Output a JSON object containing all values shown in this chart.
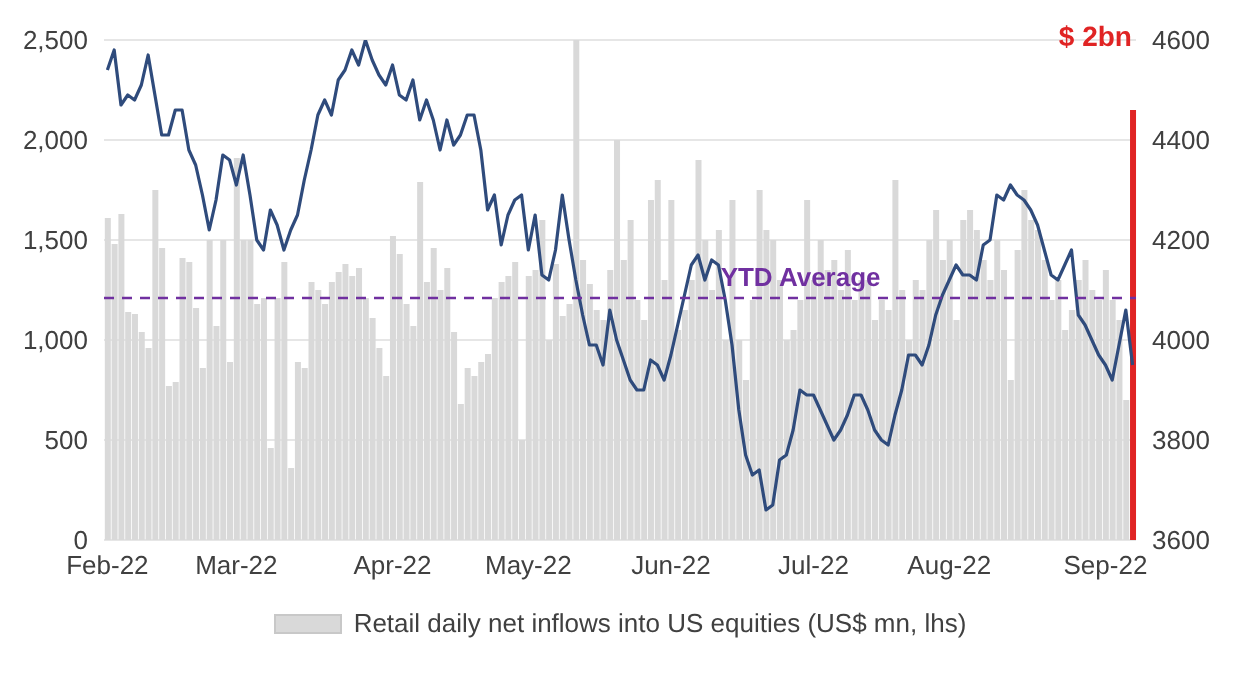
{
  "chart_data": {
    "type": "bar",
    "categories": [
      "Feb-22",
      null,
      null,
      null,
      null,
      null,
      null,
      null,
      null,
      null,
      null,
      null,
      null,
      null,
      null,
      null,
      null,
      null,
      null,
      "Mar-22",
      null,
      null,
      null,
      null,
      null,
      null,
      null,
      null,
      null,
      null,
      null,
      null,
      null,
      null,
      null,
      null,
      null,
      null,
      null,
      null,
      null,
      null,
      "Apr-22",
      null,
      null,
      null,
      null,
      null,
      null,
      null,
      null,
      null,
      null,
      null,
      null,
      null,
      null,
      null,
      null,
      null,
      null,
      null,
      "May-22",
      null,
      null,
      null,
      null,
      null,
      null,
      null,
      null,
      null,
      null,
      null,
      null,
      null,
      null,
      null,
      null,
      null,
      null,
      null,
      null,
      "Jun-22",
      null,
      null,
      null,
      null,
      null,
      null,
      null,
      null,
      null,
      null,
      null,
      null,
      null,
      null,
      null,
      null,
      null,
      null,
      null,
      null,
      "Jul-22",
      null,
      null,
      null,
      null,
      null,
      null,
      null,
      null,
      null,
      null,
      null,
      null,
      null,
      null,
      null,
      null,
      null,
      null,
      null,
      "Aug-22",
      null,
      null,
      null,
      null,
      null,
      null,
      null,
      null,
      null,
      null,
      null,
      null,
      null,
      null,
      null,
      null,
      null,
      null,
      null,
      null,
      null,
      null,
      "Sep-22",
      null,
      null,
      null,
      null
    ],
    "series": [
      {
        "name": "Retail daily net inflows into US equities (US$ mn, lhs)",
        "color": "#d9d9d9",
        "colors": [
          "#d9d9d9",
          "#d9d9d9",
          "#d9d9d9",
          "#d9d9d9",
          "#d9d9d9",
          "#d9d9d9",
          "#d9d9d9",
          "#d9d9d9",
          "#d9d9d9",
          "#d9d9d9",
          "#d9d9d9",
          "#d9d9d9",
          "#d9d9d9",
          "#d9d9d9",
          "#d9d9d9",
          "#d9d9d9",
          "#d9d9d9",
          "#d9d9d9",
          "#d9d9d9",
          "#d9d9d9",
          "#d9d9d9",
          "#d9d9d9",
          "#d9d9d9",
          "#d9d9d9",
          "#d9d9d9",
          "#d9d9d9",
          "#d9d9d9",
          "#d9d9d9",
          "#d9d9d9",
          "#d9d9d9",
          "#d9d9d9",
          "#d9d9d9",
          "#d9d9d9",
          "#d9d9d9",
          "#d9d9d9",
          "#d9d9d9",
          "#d9d9d9",
          "#d9d9d9",
          "#d9d9d9",
          "#d9d9d9",
          "#d9d9d9",
          "#d9d9d9",
          "#d9d9d9",
          "#d9d9d9",
          "#d9d9d9",
          "#d9d9d9",
          "#d9d9d9",
          "#d9d9d9",
          "#d9d9d9",
          "#d9d9d9",
          "#d9d9d9",
          "#d9d9d9",
          "#d9d9d9",
          "#d9d9d9",
          "#d9d9d9",
          "#d9d9d9",
          "#d9d9d9",
          "#d9d9d9",
          "#d9d9d9",
          "#d9d9d9",
          "#d9d9d9",
          "#d9d9d9",
          "#d9d9d9",
          "#d9d9d9",
          "#d9d9d9",
          "#d9d9d9",
          "#d9d9d9",
          "#d9d9d9",
          "#d9d9d9",
          "#d9d9d9",
          "#d9d9d9",
          "#d9d9d9",
          "#d9d9d9",
          "#d9d9d9",
          "#d9d9d9",
          "#d9d9d9",
          "#d9d9d9",
          "#d9d9d9",
          "#d9d9d9",
          "#d9d9d9",
          "#d9d9d9",
          "#d9d9d9",
          "#d9d9d9",
          "#d9d9d9",
          "#d9d9d9",
          "#d9d9d9",
          "#d9d9d9",
          "#d9d9d9",
          "#d9d9d9",
          "#d9d9d9",
          "#d9d9d9",
          "#d9d9d9",
          "#d9d9d9",
          "#d9d9d9",
          "#d9d9d9",
          "#d9d9d9",
          "#d9d9d9",
          "#d9d9d9",
          "#d9d9d9",
          "#d9d9d9",
          "#d9d9d9",
          "#d9d9d9",
          "#d9d9d9",
          "#d9d9d9",
          "#d9d9d9",
          "#d9d9d9",
          "#d9d9d9",
          "#d9d9d9",
          "#d9d9d9",
          "#d9d9d9",
          "#d9d9d9",
          "#d9d9d9",
          "#d9d9d9",
          "#d9d9d9",
          "#d9d9d9",
          "#d9d9d9",
          "#d9d9d9",
          "#d9d9d9",
          "#d9d9d9",
          "#d9d9d9",
          "#d9d9d9",
          "#d9d9d9",
          "#d9d9d9",
          "#d9d9d9",
          "#d9d9d9",
          "#d9d9d9",
          "#d9d9d9",
          "#d9d9d9",
          "#d9d9d9",
          "#d9d9d9",
          "#d9d9d9",
          "#d9d9d9",
          "#d9d9d9",
          "#d9d9d9",
          "#d9d9d9",
          "#d9d9d9",
          "#d9d9d9",
          "#d9d9d9",
          "#d9d9d9",
          "#d9d9d9",
          "#d9d9d9",
          "#d9d9d9",
          "#d9d9d9",
          "#d9d9d9",
          "#d9d9d9",
          "#d9d9d9",
          "#d9d9d9",
          "#d9d9d9",
          "#d9d9d9",
          "#d9d9d9",
          "#d9d9d9",
          "#e02424"
        ],
        "values": [
          1610,
          1480,
          1630,
          1140,
          1130,
          1040,
          960,
          1750,
          1460,
          770,
          790,
          1410,
          1390,
          1160,
          860,
          1500,
          1070,
          1500,
          890,
          1910,
          1500,
          1500,
          1180,
          1210,
          460,
          1210,
          1390,
          360,
          890,
          860,
          1290,
          1250,
          1180,
          1290,
          1340,
          1380,
          1320,
          1360,
          1210,
          1110,
          960,
          820,
          1520,
          1430,
          1180,
          1070,
          1790,
          1290,
          1460,
          1250,
          1360,
          1040,
          680,
          860,
          820,
          890,
          930,
          1210,
          1290,
          1320,
          1390,
          500,
          1320,
          1350,
          1600,
          1000,
          1380,
          1120,
          1180,
          2500,
          1400,
          1280,
          1150,
          1100,
          1350,
          2000,
          1400,
          1600,
          1200,
          1100,
          1700,
          1800,
          1300,
          1700,
          1050,
          1150,
          1300,
          1900,
          1500,
          1250,
          1550,
          1000,
          1700,
          1000,
          800,
          1200,
          1750,
          1550,
          1500,
          1300,
          1000,
          1050,
          1200,
          1700,
          1300,
          1500,
          1350,
          1400,
          1250,
          1450,
          1200,
          1300,
          1300,
          1100,
          1200,
          1150,
          1800,
          1250,
          1000,
          1300,
          1250,
          1500,
          1650,
          1400,
          1500,
          1100,
          1600,
          1650,
          1550,
          1400,
          1300,
          1500,
          1350,
          800,
          1450,
          1750,
          1600,
          1550,
          1400,
          1200,
          1300,
          1050,
          1150,
          1300,
          1400,
          1250,
          1200,
          1350,
          1200,
          1100,
          700,
          2150
        ]
      },
      {
        "type": "line",
        "axis": "y2",
        "color": "#2f4b7c",
        "values": [
          4540,
          4580,
          4470,
          4490,
          4480,
          4510,
          4570,
          4490,
          4410,
          4410,
          4460,
          4460,
          4380,
          4350,
          4290,
          4220,
          4280,
          4370,
          4360,
          4310,
          4370,
          4290,
          4200,
          4180,
          4260,
          4230,
          4180,
          4220,
          4250,
          4320,
          4380,
          4450,
          4480,
          4450,
          4520,
          4540,
          4580,
          4550,
          4600,
          4560,
          4530,
          4510,
          4550,
          4490,
          4480,
          4520,
          4440,
          4480,
          4440,
          4380,
          4440,
          4390,
          4410,
          4450,
          4450,
          4380,
          4260,
          4290,
          4190,
          4250,
          4280,
          4290,
          4180,
          4250,
          4130,
          4120,
          4180,
          4290,
          4200,
          4120,
          4050,
          3990,
          3990,
          3950,
          4060,
          4000,
          3960,
          3920,
          3900,
          3900,
          3960,
          3950,
          3920,
          3970,
          4030,
          4090,
          4150,
          4170,
          4120,
          4160,
          4150,
          4080,
          3990,
          3860,
          3770,
          3730,
          3740,
          3660,
          3670,
          3760,
          3770,
          3820,
          3900,
          3890,
          3890,
          3860,
          3830,
          3800,
          3820,
          3850,
          3890,
          3890,
          3860,
          3820,
          3800,
          3790,
          3850,
          3900,
          3970,
          3970,
          3950,
          3990,
          4050,
          4090,
          4120,
          4150,
          4130,
          4130,
          4120,
          4190,
          4200,
          4290,
          4280,
          4310,
          4290,
          4280,
          4260,
          4230,
          4180,
          4130,
          4120,
          4150,
          4180,
          4050,
          4030,
          4000,
          3970,
          3950,
          3920,
          3990,
          4060,
          3950
        ]
      }
    ],
    "ylim": [
      0,
      2500
    ],
    "yticks": [
      {
        "value": 0,
        "label": "0"
      },
      {
        "value": 500,
        "label": "500"
      },
      {
        "value": 1000,
        "label": "1,000"
      },
      {
        "value": 1500,
        "label": "1,500"
      },
      {
        "value": 2000,
        "label": "2,000"
      },
      {
        "value": 2500,
        "label": "2,500"
      }
    ],
    "y2lim": [
      3600,
      4600
    ],
    "y2ticks": [
      3600,
      3800,
      4000,
      4200,
      4400,
      4600
    ],
    "ref_lines": [
      {
        "axis": "y",
        "value": 1210,
        "label": "YTD Average",
        "color": "#7030a0",
        "line_style": "dashed"
      }
    ],
    "annotations": [
      "$ 2bn"
    ],
    "grid": "y",
    "legend": "bottom"
  }
}
